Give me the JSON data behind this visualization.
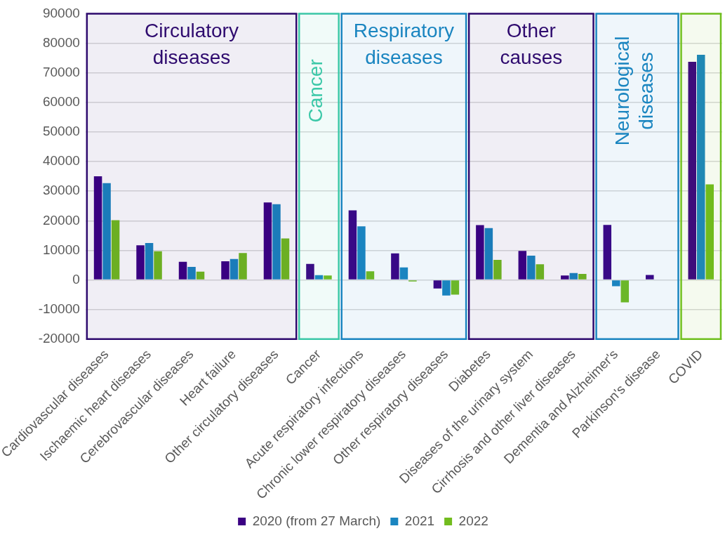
{
  "chart_data": {
    "type": "bar",
    "categories": [
      "Cardiovascular diseases",
      "Ischaemic heart diseases",
      "Cerebrovascular diseases",
      "Heart failure",
      "Other circulatory diseases",
      "Cancer",
      "Acute respiratory infections",
      "Chronic lower respiratory diseases",
      "Other respiratory diseases",
      "Diabetes",
      "Diseases of the urinary system",
      "Cirrhosis and other liver diseases",
      "Dementia and Alzheimer's",
      "Parkinson's disease",
      "COVID"
    ],
    "series": [
      {
        "name": "2020 (from 27 March)",
        "color": "#3b0083",
        "values": [
          35000,
          11700,
          6100,
          6300,
          26200,
          5400,
          23500,
          9000,
          -2900,
          18500,
          9800,
          1500,
          18600,
          1700,
          73700
        ]
      },
      {
        "name": "2021",
        "color": "#1a85c0",
        "values": [
          32700,
          12500,
          4400,
          7100,
          25600,
          1600,
          18100,
          4200,
          -5300,
          17500,
          8200,
          2300,
          -2100,
          null,
          76100
        ]
      },
      {
        "name": "2022",
        "color": "#72bc1e",
        "values": [
          20200,
          9700,
          2800,
          9100,
          14000,
          1500,
          2900,
          -500,
          -5000,
          6800,
          5300,
          2000,
          -7600,
          null,
          32300
        ]
      }
    ],
    "ylim": [
      -20000,
      90000
    ],
    "yticks": [
      -20000,
      -10000,
      0,
      10000,
      20000,
      30000,
      40000,
      50000,
      60000,
      70000,
      80000,
      90000
    ],
    "grid": "y",
    "legend": "bottom",
    "bands": [
      {
        "axis": "x",
        "from": "Cardiovascular diseases",
        "to": "Other circulatory diseases",
        "label": "Circulatory diseases",
        "color": "#2e0a6e"
      },
      {
        "axis": "x",
        "from": "Cancer",
        "to": "Cancer",
        "label": "Cancer",
        "color": "#3cc8a8"
      },
      {
        "axis": "x",
        "from": "Acute respiratory infections",
        "to": "Other respiratory diseases",
        "label": "Respiratory diseases",
        "color": "#1a85c0"
      },
      {
        "axis": "x",
        "from": "Diabetes",
        "to": "Cirrhosis and other liver diseases",
        "label": "Other causes",
        "color": "#2e0a6e"
      },
      {
        "axis": "x",
        "from": "Dementia and Alzheimer's",
        "to": "Parkinson's disease",
        "label": "Neurological diseases",
        "color": "#1a85c0"
      },
      {
        "axis": "x",
        "from": "COVID",
        "to": "COVID",
        "color": "#6fbf1e"
      }
    ]
  }
}
